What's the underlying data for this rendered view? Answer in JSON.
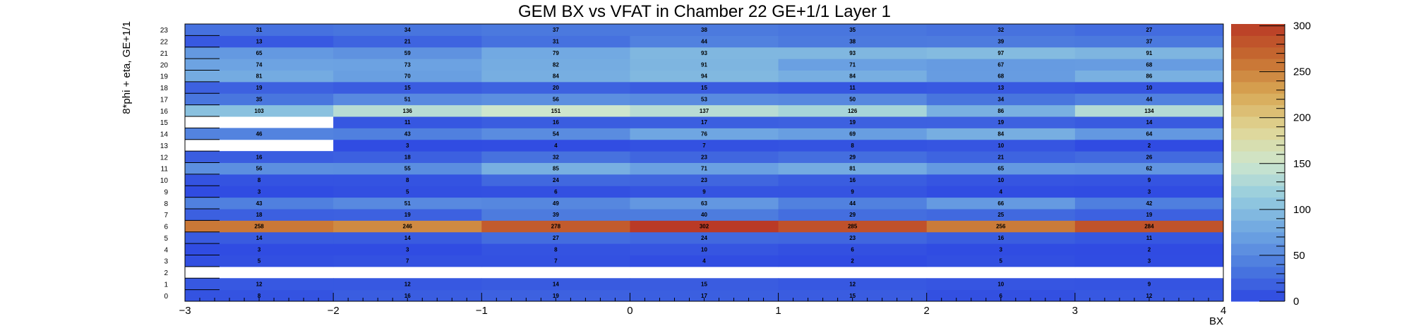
{
  "chart_data": {
    "type": "heatmap",
    "title": "GEM BX vs VFAT in Chamber 22 GE+1/1 Layer 1",
    "xlabel": "BX",
    "ylabel": "8*phi + eta, GE+1/1",
    "x_edges": [
      -3,
      -2,
      -1,
      0,
      1,
      2,
      3,
      4
    ],
    "x_tick_labels": [
      "−3",
      "−2",
      "−1",
      "0",
      "1",
      "2",
      "3",
      "4"
    ],
    "xlim": [
      -3,
      4
    ],
    "y_bins": [
      0,
      1,
      2,
      3,
      4,
      5,
      6,
      7,
      8,
      9,
      10,
      11,
      12,
      13,
      14,
      15,
      16,
      17,
      18,
      19,
      20,
      21,
      22,
      23
    ],
    "zlim": [
      0,
      302
    ],
    "palette_ticks": [
      0,
      50,
      100,
      150,
      200,
      250,
      300
    ],
    "values": [
      [
        8,
        16,
        19,
        17,
        15,
        6,
        12
      ],
      [
        12,
        12,
        14,
        15,
        12,
        10,
        9
      ],
      [
        null,
        null,
        null,
        null,
        null,
        null,
        null
      ],
      [
        5,
        7,
        7,
        4,
        2,
        5,
        3
      ],
      [
        3,
        3,
        8,
        10,
        6,
        3,
        2
      ],
      [
        14,
        14,
        27,
        24,
        23,
        16,
        11
      ],
      [
        258,
        246,
        278,
        302,
        285,
        256,
        284
      ],
      [
        18,
        19,
        39,
        40,
        29,
        25,
        19
      ],
      [
        43,
        51,
        49,
        63,
        44,
        66,
        42
      ],
      [
        3,
        5,
        6,
        9,
        9,
        4,
        3
      ],
      [
        8,
        8,
        24,
        23,
        16,
        10,
        9
      ],
      [
        56,
        55,
        85,
        71,
        81,
        65,
        62
      ],
      [
        16,
        18,
        32,
        23,
        29,
        21,
        26
      ],
      [
        null,
        3,
        4,
        7,
        8,
        10,
        2
      ],
      [
        46,
        43,
        54,
        76,
        69,
        84,
        64
      ],
      [
        null,
        11,
        16,
        17,
        19,
        19,
        14
      ],
      [
        103,
        136,
        151,
        137,
        126,
        86,
        134
      ],
      [
        35,
        51,
        56,
        53,
        50,
        34,
        44
      ],
      [
        19,
        15,
        20,
        15,
        11,
        13,
        10
      ],
      [
        81,
        70,
        84,
        94,
        84,
        68,
        86
      ],
      [
        74,
        73,
        82,
        91,
        71,
        67,
        68
      ],
      [
        65,
        59,
        79,
        93,
        93,
        97,
        91
      ],
      [
        13,
        21,
        31,
        44,
        38,
        39,
        37
      ],
      [
        31,
        34,
        37,
        38,
        35,
        32,
        27
      ]
    ]
  }
}
